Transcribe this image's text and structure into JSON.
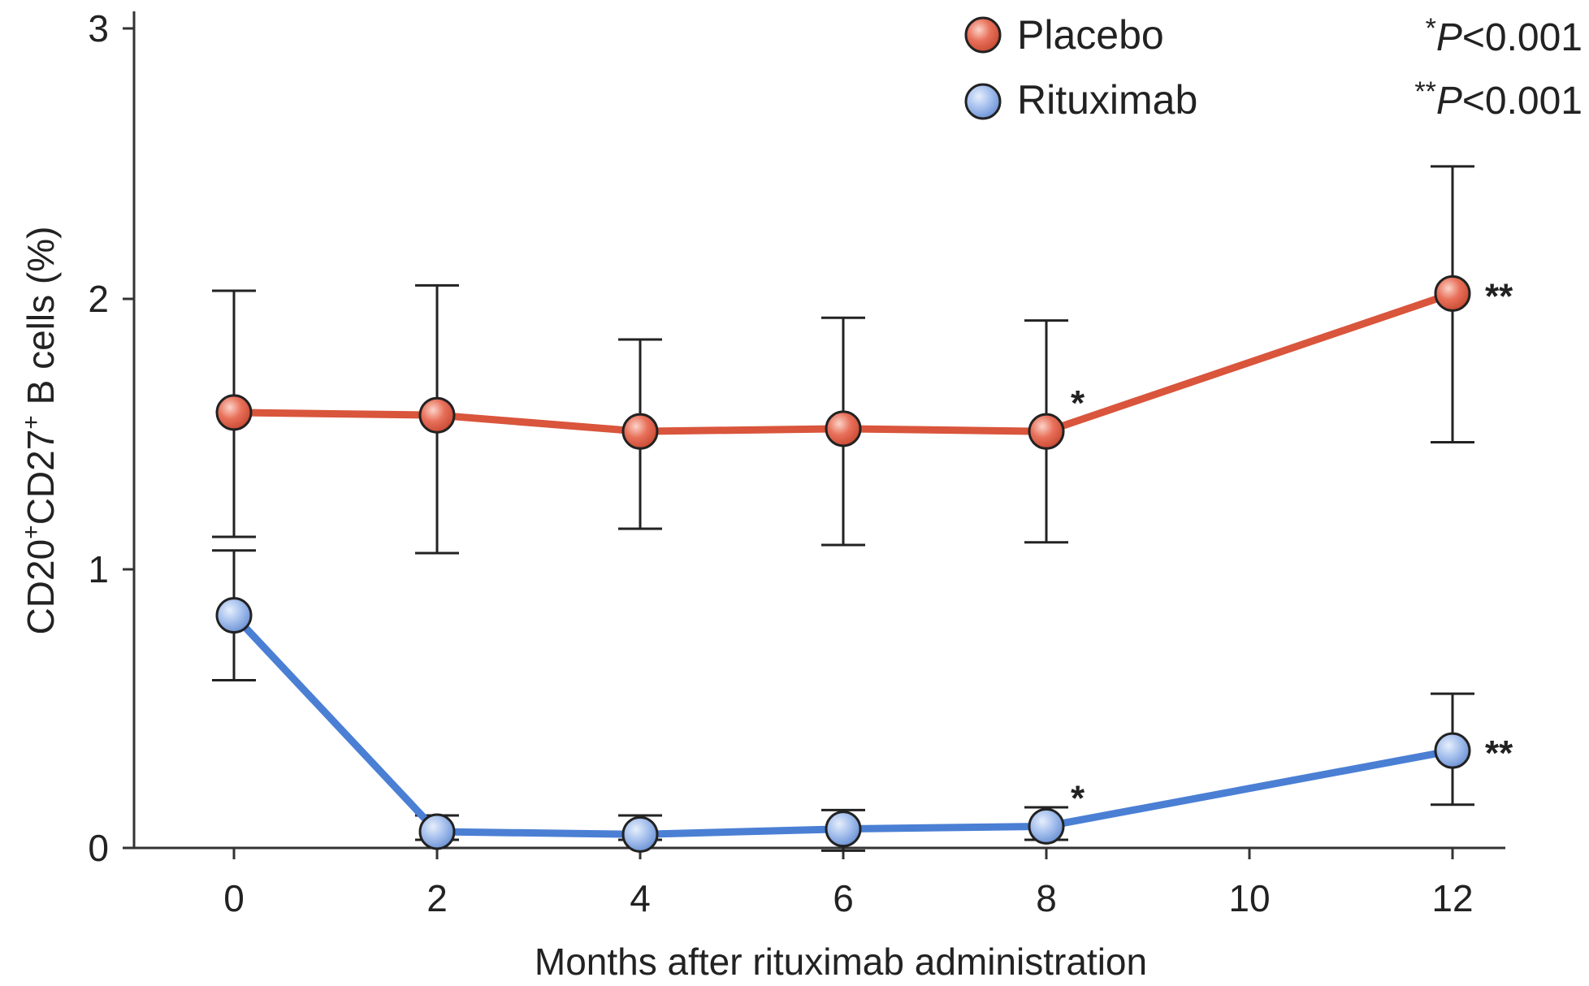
{
  "chart_data": {
    "type": "line",
    "xlabel": "Months after rituximab administration",
    "ylabel_parts": [
      "CD20",
      "+",
      "CD27",
      "+",
      " B cells (%)"
    ],
    "xticks": [
      0,
      2,
      4,
      6,
      8,
      10,
      12
    ],
    "yticks": [
      0,
      1,
      2,
      3
    ],
    "xlim": [
      -1,
      12.6
    ],
    "ylim": [
      0,
      3
    ],
    "legend_position": "top-center",
    "series": [
      {
        "name": "Placebo",
        "color": "#d9553c",
        "marker_fill": "#e8705a",
        "x": [
          0,
          2,
          4,
          6,
          8,
          12
        ],
        "y": [
          1.58,
          1.57,
          1.51,
          1.52,
          1.51,
          2.02
        ],
        "err_low": [
          1.12,
          1.06,
          1.15,
          1.09,
          1.1,
          1.47
        ],
        "err_high": [
          2.03,
          2.05,
          1.85,
          1.93,
          1.92,
          2.49
        ]
      },
      {
        "name": "Rituximab",
        "color": "#4a7fd4",
        "marker_fill": "#9ab8ea",
        "x": [
          0,
          2,
          4,
          6,
          8,
          12
        ],
        "y": [
          0.83,
          0.03,
          0.02,
          0.04,
          0.05,
          0.33
        ],
        "err_low": [
          0.59,
          0.0,
          0.0,
          -0.04,
          0.0,
          0.13
        ],
        "err_high": [
          1.07,
          0.09,
          0.09,
          0.11,
          0.12,
          0.54
        ]
      }
    ],
    "annotations": [
      {
        "label": "*",
        "series": 0,
        "x": 8
      },
      {
        "label": "**",
        "series": 0,
        "x": 12
      },
      {
        "label": "*",
        "series": 1,
        "x": 8
      },
      {
        "label": "**",
        "series": 1,
        "x": 12
      }
    ],
    "pvalues": [
      {
        "stars": "*",
        "italic": "P",
        "text": "<0.001"
      },
      {
        "stars": "**",
        "italic": "P",
        "text": "<0.001"
      }
    ]
  }
}
